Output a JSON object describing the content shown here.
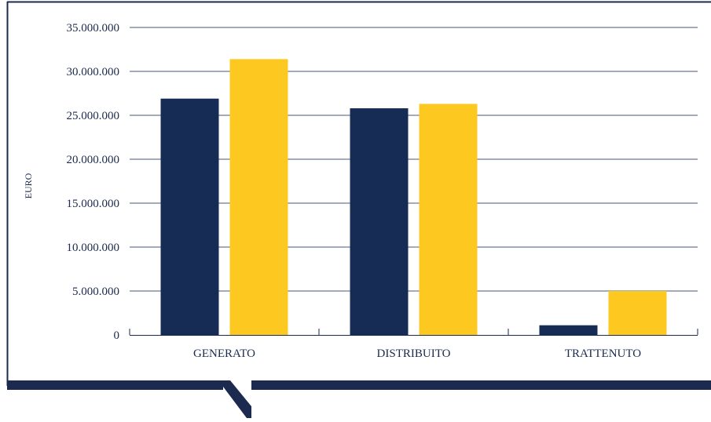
{
  "chart_data": {
    "type": "bar",
    "title": "",
    "xlabel": "",
    "ylabel": "EURO",
    "ylim": [
      0,
      35000000
    ],
    "yticks": [
      0,
      5000000,
      10000000,
      15000000,
      20000000,
      25000000,
      30000000,
      35000000
    ],
    "ytick_labels": [
      "0",
      "5.000.000",
      "10.000.000",
      "15.000.000",
      "20.000.000",
      "25.000.000",
      "30.000.000",
      "35.000.000"
    ],
    "categories": [
      "GENERATO",
      "DISTRIBUITO",
      "TRATTENUTO"
    ],
    "series": [
      {
        "color": "#172c55",
        "values": [
          26900000,
          25800000,
          1100000
        ]
      },
      {
        "color": "#fdc820",
        "values": [
          31400000,
          26300000,
          5000000
        ]
      }
    ],
    "grid": true,
    "legend": "none"
  },
  "colors": {
    "frame": "#1b2a4e",
    "gridline": "#4a5a7a",
    "text": "#1b2a4e"
  }
}
